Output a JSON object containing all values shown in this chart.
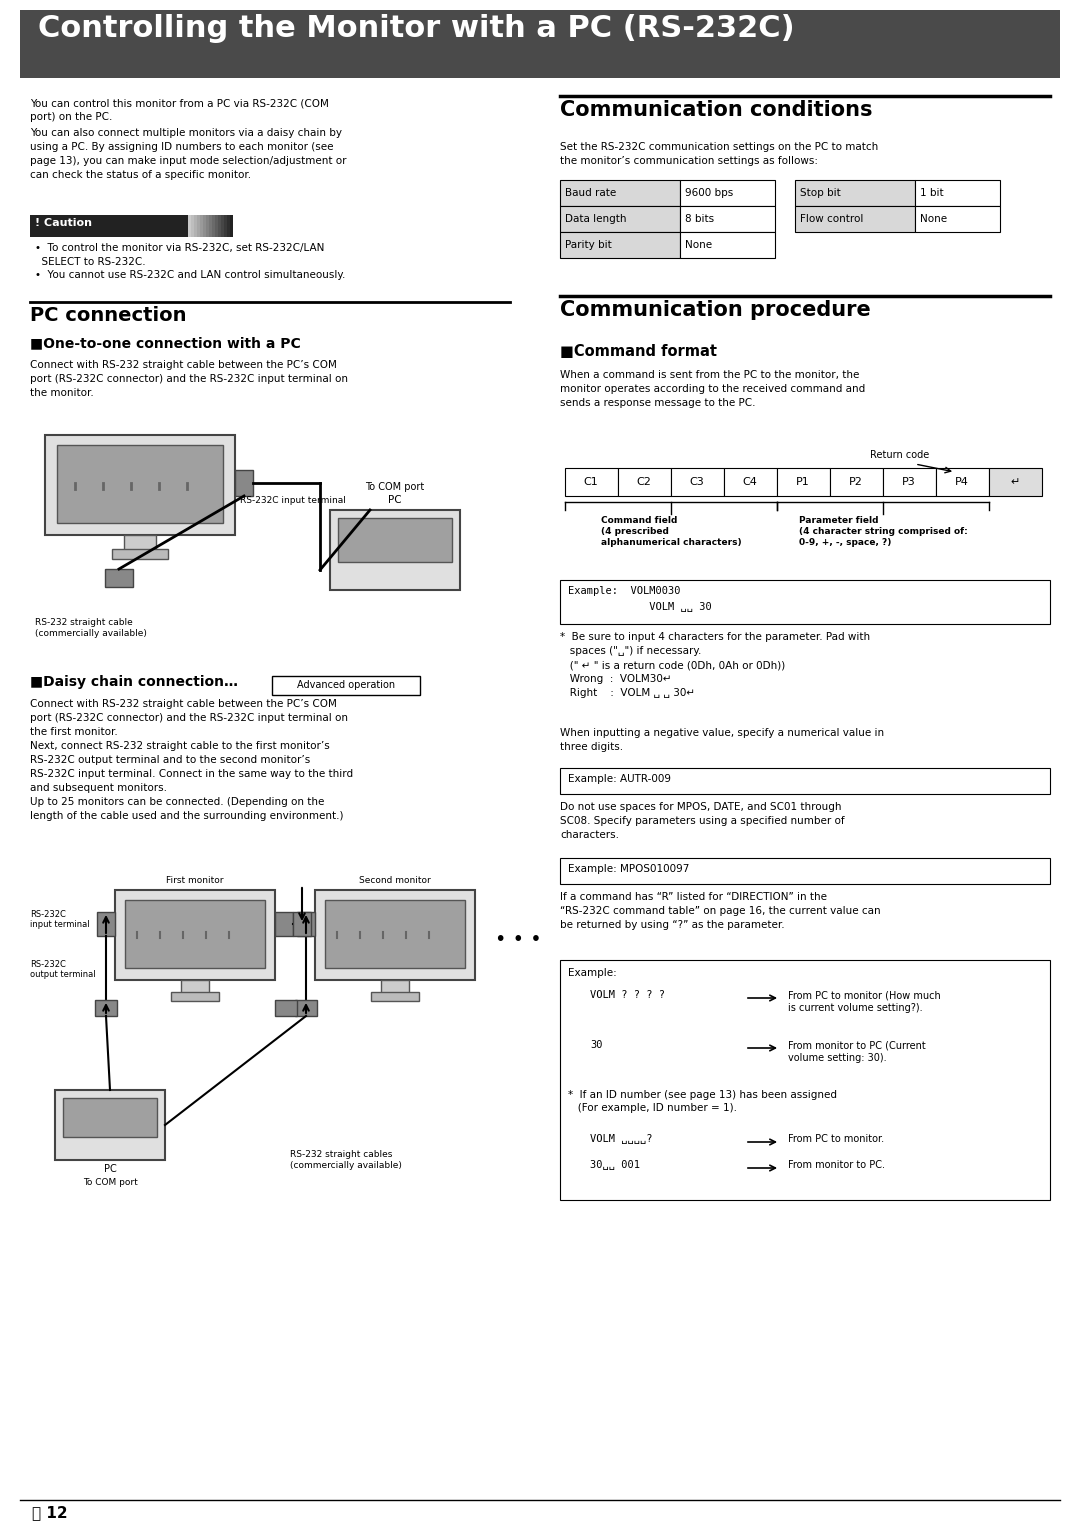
{
  "title": "Controlling the Monitor with a PC (RS-232C)",
  "title_bg": "#4a4a4a",
  "title_fg": "#ffffff",
  "page_bg": "#ffffff",
  "body_text_size": 7.2,
  "intro_text_1": "You can control this monitor from a PC via RS-232C (COM\nport) on the PC.",
  "intro_text_2": "You can also connect multiple monitors via a daisy chain by\nusing a PC. By assigning ID numbers to each monitor (see\npage 13), you can make input mode selection/adjustment or\ncan check the status of a specific monitor.",
  "caution_items": [
    "To control the monitor via RS-232C, set RS-232C/LAN\n  SELECT to RS-232C.",
    "You cannot use RS-232C and LAN control simultaneously."
  ],
  "comm_cond_intro": "Set the RS-232C communication settings on the PC to match\nthe monitor’s communication settings as follows:",
  "comm_table_left": [
    [
      "Baud rate",
      "9600 bps"
    ],
    [
      "Data length",
      "8 bits"
    ],
    [
      "Parity bit",
      "None"
    ]
  ],
  "comm_table_right": [
    [
      "Stop bit",
      "1 bit"
    ],
    [
      "Flow control",
      "None"
    ]
  ],
  "comm_proc_intro": "When a command is sent from the PC to the monitor, the\nmonitor operates according to the received command and\nsends a response message to the PC.",
  "command_cells": [
    "C1",
    "C2",
    "C3",
    "C4",
    "P1",
    "P2",
    "P3",
    "P4",
    "↵"
  ],
  "example_box1_line1": "Example:  VOLM0030",
  "example_box1_line2": "             VOLM ␣␣ 30",
  "note_text": "*  Be sure to input 4 characters for the parameter. Pad with\n   spaces (\"␣\") if necessary.\n   (\" ↵ \" is a return code (0Dh, 0Ah or 0Dh))\n   Wrong  :  VOLM30↵\n   Right    :  VOLM ␣ ␣ 30↵",
  "negative_text": "When inputting a negative value, specify a numerical value in\nthree digits.",
  "example_box2": "Example: AUTR-009",
  "mpos_text": "Do not use spaces for MPOS, DATE, and SC01 through\nSC08. Specify parameters using a specified number of\ncharacters.",
  "example_box3": "Example: MPOS010097",
  "direction_text": "If a command has “R” listed for “DIRECTION” in the\n“RS-232C command table” on page 16, the current value can\nbe returned by using “?” as the parameter.",
  "example_label": "Example:",
  "volm_q": "VOLM ? ? ? ?",
  "volm_q_desc": "From PC to monitor (How much\nis current volume setting?).",
  "volm_30": "30",
  "volm_30_desc": "From monitor to PC (Current\nvolume setting: 30).",
  "id_note": "*  If an ID number (see page 13) has been assigned\n   (For example, ID number = 1).",
  "volm_id": "VOLM ␣␣␣␣?",
  "volm_id_desc": "From PC to monitor.",
  "volm_id2": "30␣␣ 001",
  "volm_id2_desc": "From monitor to PC.",
  "pc_connection_body": "Connect with RS-232 straight cable between the PC’s COM\nport (RS-232C connector) and the RS-232C input terminal on\nthe monitor.",
  "daisy_body": "Connect with RS-232 straight cable between the PC’s COM\nport (RS-232C connector) and the RS-232C input terminal on\nthe first monitor.\nNext, connect RS-232 straight cable to the first monitor’s\nRS-232C output terminal and to the second monitor’s\nRS-232C input terminal. Connect in the same way to the third\nand subsequent monitors.\nUp to 25 monitors can be connected. (Depending on the\nlength of the cable used and the surrounding environment.)"
}
